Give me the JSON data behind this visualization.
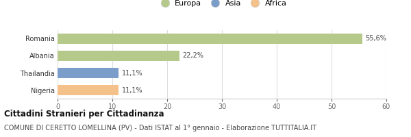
{
  "categories": [
    "Nigeria",
    "Thailandia",
    "Albania",
    "Romania"
  ],
  "values": [
    11.1,
    11.1,
    22.2,
    55.6
  ],
  "labels": [
    "11,1%",
    "11,1%",
    "22,2%",
    "55,6%"
  ],
  "colors": [
    "#f5c18a",
    "#7b9dc9",
    "#b5c98a",
    "#b5c98a"
  ],
  "legend": [
    {
      "label": "Europa",
      "color": "#b5c98a"
    },
    {
      "label": "Asia",
      "color": "#7b9dc9"
    },
    {
      "label": "Africa",
      "color": "#f5c18a"
    }
  ],
  "xlim": [
    0,
    60
  ],
  "xticks": [
    0,
    10,
    20,
    30,
    40,
    50,
    60
  ],
  "title_bold": "Cittadini Stranieri per Cittadinanza",
  "subtitle": "COMUNE DI CERETTO LOMELLINA (PV) - Dati ISTAT al 1° gennaio - Elaborazione TUTTITALIA.IT",
  "bg_color": "#ffffff",
  "plot_bg": "#ffffff",
  "grid_color": "#dddddd",
  "title_fontsize": 8.5,
  "subtitle_fontsize": 7,
  "label_fontsize": 7,
  "tick_fontsize": 7,
  "legend_fontsize": 8
}
